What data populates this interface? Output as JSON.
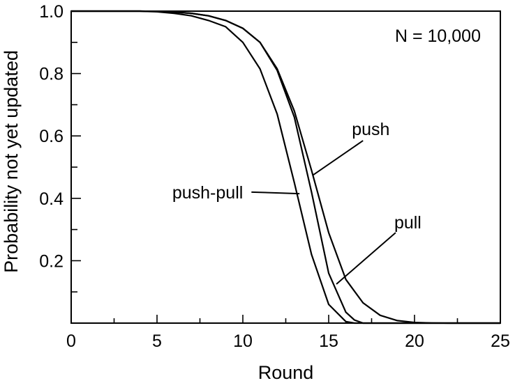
{
  "chart_data": {
    "type": "line",
    "xlabel": "Round",
    "ylabel": "Probability not yet updated",
    "xlim": [
      0,
      25
    ],
    "ylim": [
      0,
      1.0
    ],
    "xticks": [
      0,
      5,
      10,
      15,
      20,
      25
    ],
    "xtick_labels": [
      "0",
      "5",
      "10",
      "15",
      "20",
      "25"
    ],
    "yticks": [
      0.2,
      0.4,
      0.6,
      0.8,
      1.0
    ],
    "ytick_labels": [
      "0.2",
      "0.4",
      "0.6",
      "0.8",
      "1.0"
    ],
    "grid": false,
    "annotation": "N = 10,000",
    "series": [
      {
        "name": "push",
        "x": [
          0,
          2,
          4,
          5,
          6,
          7,
          8,
          9,
          10,
          11,
          12,
          13,
          14,
          15,
          16,
          17,
          18,
          19,
          20,
          21,
          22,
          25
        ],
        "y": [
          1.0,
          1.0,
          1.0,
          0.999,
          0.997,
          0.993,
          0.985,
          0.97,
          0.945,
          0.9,
          0.815,
          0.68,
          0.49,
          0.29,
          0.14,
          0.065,
          0.025,
          0.008,
          0.002,
          0.0005,
          0.0,
          0.0
        ]
      },
      {
        "name": "pull",
        "x": [
          0,
          2,
          4,
          5,
          6,
          7,
          8,
          9,
          10,
          11,
          12,
          13,
          14,
          15,
          16,
          16.5,
          17,
          25
        ],
        "y": [
          1.0,
          1.0,
          1.0,
          0.999,
          0.997,
          0.993,
          0.985,
          0.97,
          0.945,
          0.9,
          0.81,
          0.66,
          0.42,
          0.16,
          0.035,
          0.01,
          0.0,
          0.0
        ]
      },
      {
        "name": "push-pull",
        "x": [
          0,
          2,
          4,
          5,
          6,
          7,
          8,
          9,
          10,
          11,
          12,
          13,
          14,
          15,
          16,
          16.5,
          25
        ],
        "y": [
          1.0,
          1.0,
          1.0,
          0.998,
          0.993,
          0.985,
          0.97,
          0.95,
          0.9,
          0.815,
          0.67,
          0.45,
          0.22,
          0.06,
          0.005,
          0.0,
          0.0
        ]
      }
    ],
    "labels": [
      {
        "text": "push",
        "series": "push",
        "leader_x": 14.1,
        "leader_y": 0.475,
        "label_x": 17.0,
        "label_y": 0.585
      },
      {
        "text": "pull",
        "series": "pull",
        "leader_x": 15.45,
        "leader_y": 0.125,
        "label_x": 18.9,
        "label_y": 0.29
      },
      {
        "text": "push-pull",
        "series": "push-pull",
        "leader_x": 13.3,
        "leader_y": 0.415,
        "label_x": 10.5,
        "label_y": 0.42
      }
    ]
  }
}
